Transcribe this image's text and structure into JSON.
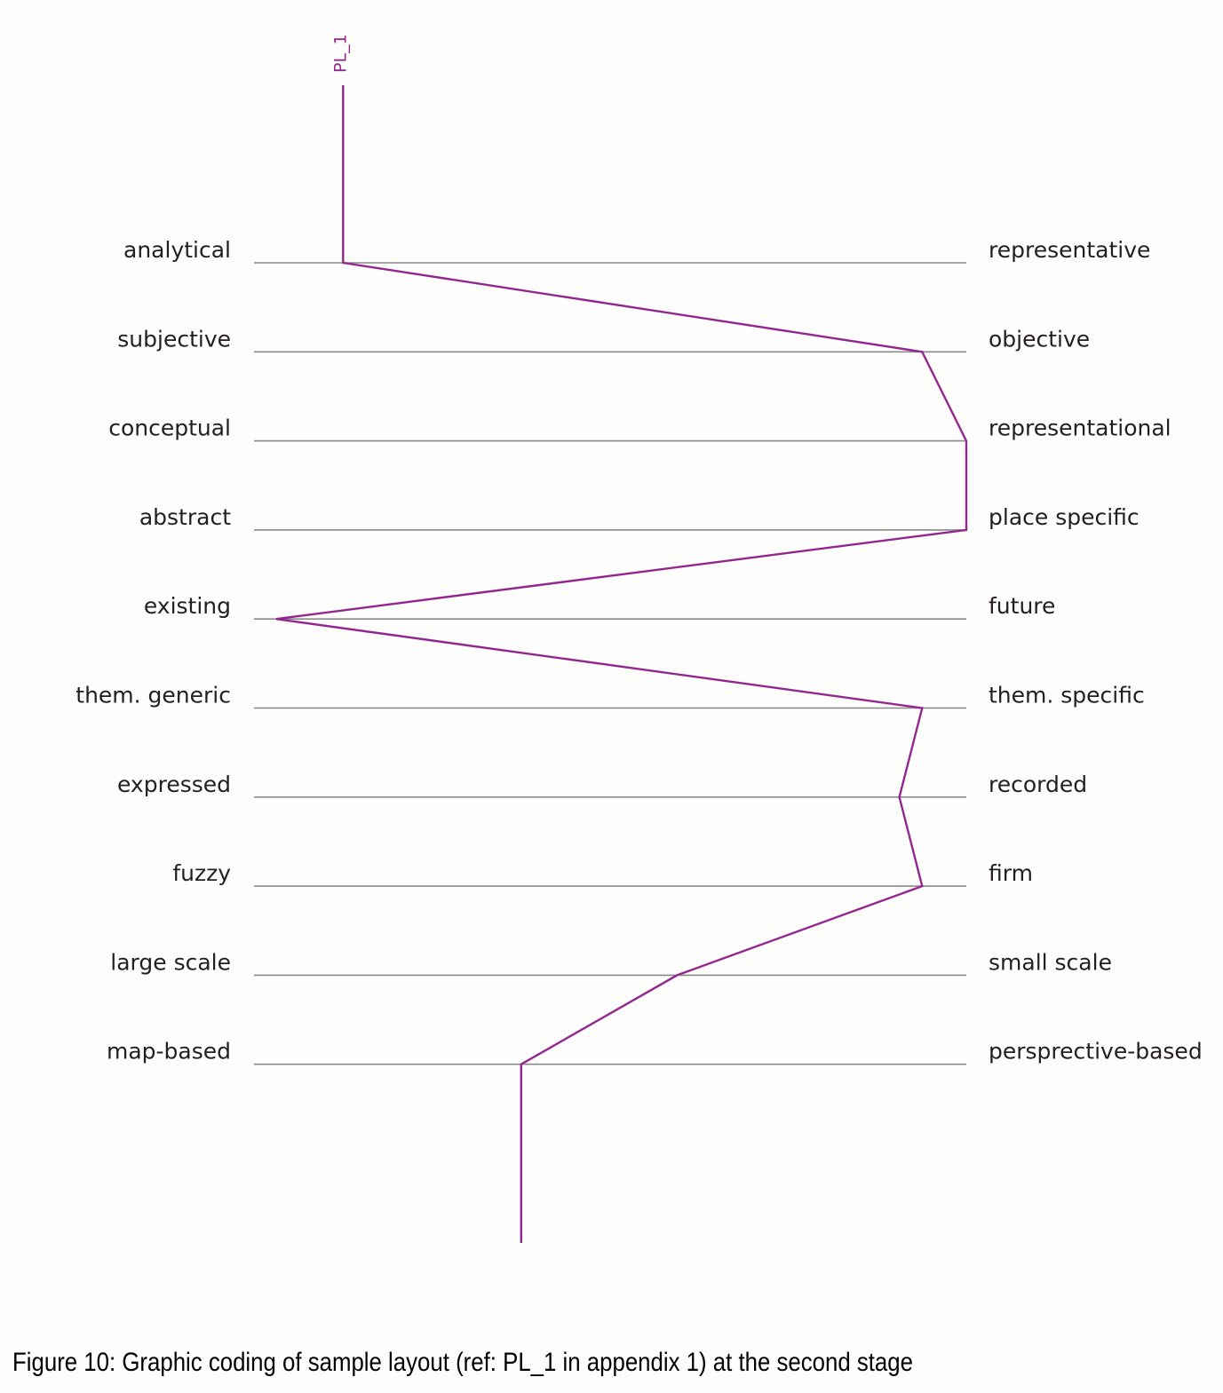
{
  "chart_data": {
    "type": "line",
    "series_label": "PL_1",
    "left_poles": [
      "analytical",
      "subjective",
      "conceptual",
      "abstract",
      "existing",
      "them. generic",
      "expressed",
      "fuzzy",
      "large scale",
      "map-based"
    ],
    "right_poles": [
      "representative",
      "objective",
      "representational",
      "place specific",
      "future",
      "them. specific",
      "recorded",
      "firm",
      "small scale",
      "persprective-based"
    ],
    "values": [
      0.125,
      0.938,
      1.0,
      1.0,
      0.031,
      0.938,
      0.906,
      0.938,
      0.594,
      0.375
    ],
    "xlim": [
      0,
      1
    ],
    "line_color": "#93278f",
    "scale_color": "#8a8a8a"
  },
  "caption": "Figure 10: Graphic coding of sample layout (ref: PL_1 in appendix 1) at the second stage"
}
